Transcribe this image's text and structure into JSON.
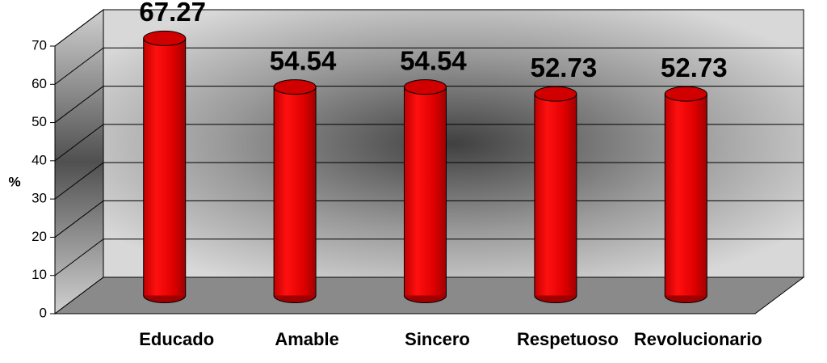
{
  "chart_data": {
    "type": "bar",
    "categories": [
      "Educado",
      "Amable",
      "Sincero",
      "Respetuoso",
      "Revolucionario"
    ],
    "values": [
      67.27,
      54.54,
      54.54,
      52.73,
      52.73
    ],
    "color": "#e00000",
    "ylabel": "%",
    "ylim": [
      0,
      70
    ],
    "yticks": [
      0,
      10,
      20,
      30,
      40,
      50,
      60,
      70
    ],
    "grid": true
  }
}
